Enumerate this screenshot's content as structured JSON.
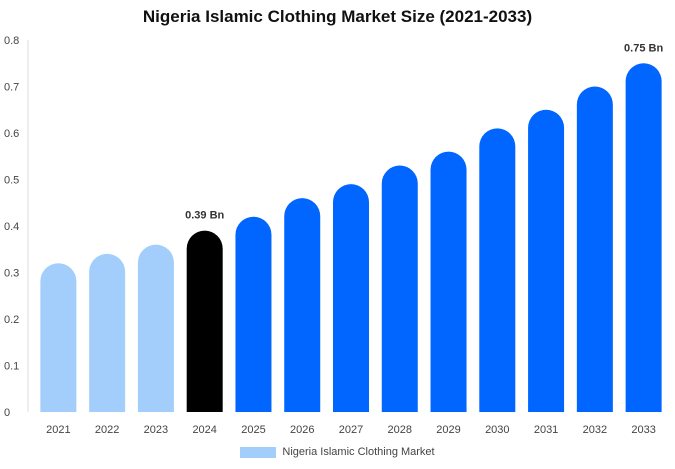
{
  "chart_data": {
    "type": "bar",
    "title": "Nigeria Islamic Clothing Market Size (2021-2033)",
    "categories": [
      "2021",
      "2022",
      "2023",
      "2024",
      "2025",
      "2026",
      "2027",
      "2028",
      "2029",
      "2030",
      "2031",
      "2032",
      "2033"
    ],
    "series": [
      {
        "name": "Nigeria Islamic Clothing Market",
        "values": [
          0.32,
          0.34,
          0.36,
          0.39,
          0.42,
          0.46,
          0.49,
          0.53,
          0.56,
          0.61,
          0.65,
          0.7,
          0.75
        ]
      }
    ],
    "ylim": [
      0,
      0.8
    ],
    "yticks": [
      "0",
      "0.1",
      "0.2",
      "0.3",
      "0.4",
      "0.5",
      "0.6",
      "0.7",
      "0.8"
    ],
    "grid": false,
    "legend_position": "bottom",
    "annotations": [
      {
        "category": "2024",
        "text": "0.39 Bn"
      },
      {
        "category": "2033",
        "text": "0.75 Bn"
      }
    ],
    "colors": {
      "historical": "#a3cdfb",
      "current": "#000000",
      "forecast": "#0066ff",
      "legend": "#a3cdfb"
    },
    "segments": {
      "historical": [
        "2021",
        "2022",
        "2023"
      ],
      "current": [
        "2024"
      ],
      "forecast": [
        "2025",
        "2026",
        "2027",
        "2028",
        "2029",
        "2030",
        "2031",
        "2032",
        "2033"
      ]
    }
  }
}
